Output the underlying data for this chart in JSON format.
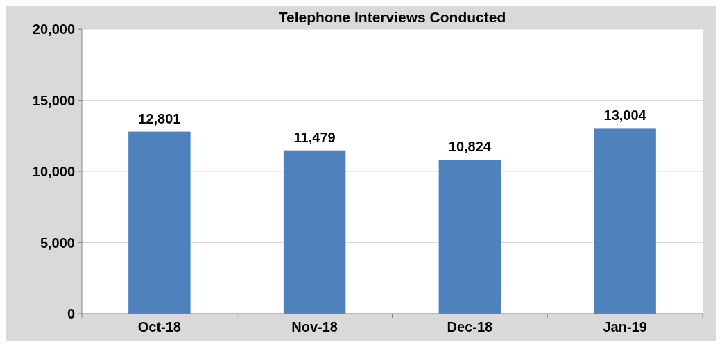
{
  "chart_data": {
    "type": "bar",
    "title": "Telephone Interviews Conducted",
    "categories": [
      "Oct-18",
      "Nov-18",
      "Dec-18",
      "Jan-19"
    ],
    "values": [
      12801,
      11479,
      10824,
      13004
    ],
    "color": "#4f81bd",
    "ylim": [
      0,
      20000
    ],
    "yticks": [
      {
        "value": 0,
        "label": "0"
      },
      {
        "value": 5000,
        "label": "5,000"
      },
      {
        "value": 10000,
        "label": "10,000"
      },
      {
        "value": 15000,
        "label": "15,000"
      },
      {
        "value": 20000,
        "label": "20,000"
      }
    ],
    "value_labels": [
      "12,801",
      "11,479",
      "10,824",
      "13,004"
    ],
    "grid": "y"
  }
}
